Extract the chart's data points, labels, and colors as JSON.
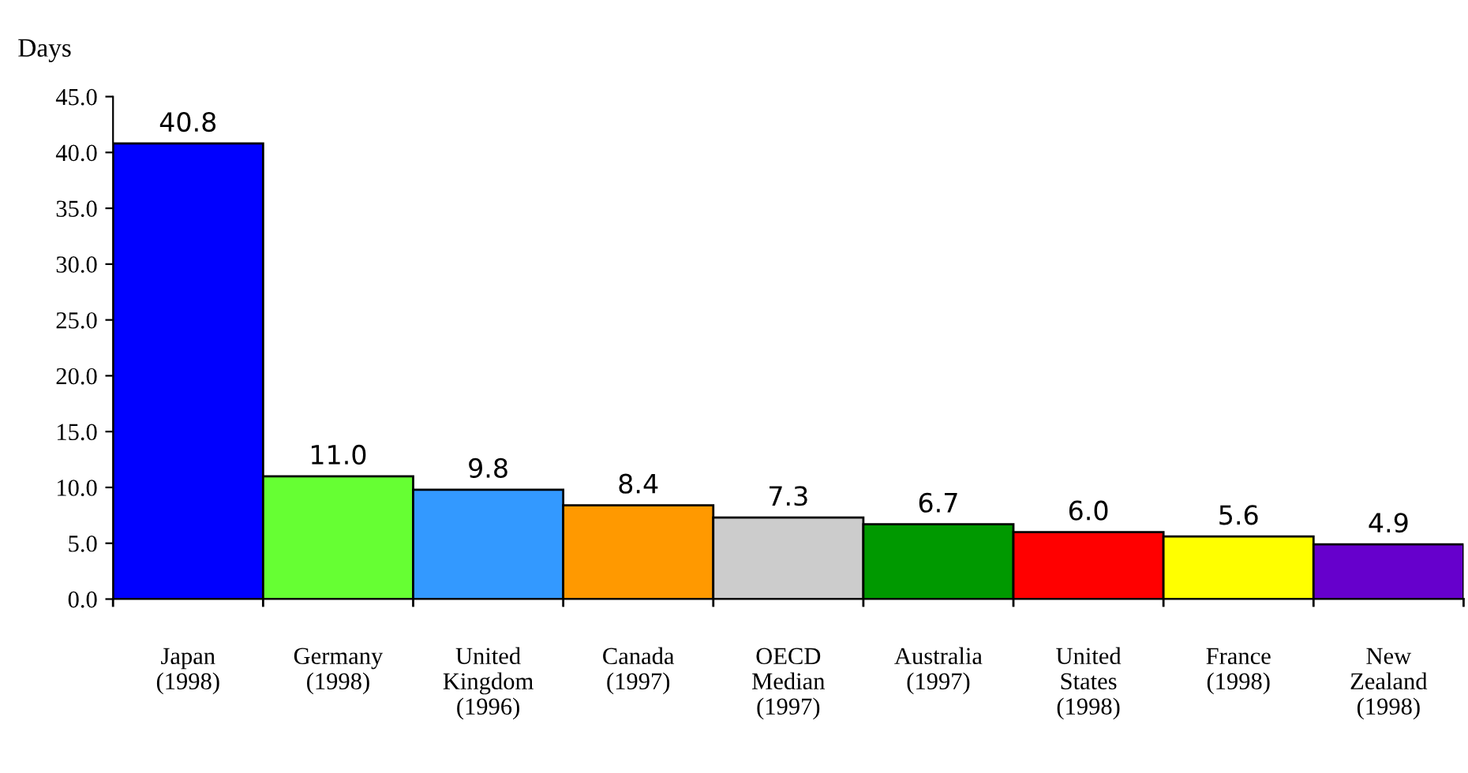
{
  "chart_data": {
    "type": "bar",
    "ylabel": "Days",
    "categories": [
      "Japan\n(1998)",
      "Germany\n(1998)",
      "United\nKingdom\n(1996)",
      "Canada\n(1997)",
      "OECD\nMedian\n(1997)",
      "Australia\n(1997)",
      "United\nStates\n(1998)",
      "France\n(1998)",
      "New\nZealand\n(1998)"
    ],
    "values": [
      40.8,
      11.0,
      9.8,
      8.4,
      7.3,
      6.7,
      6.0,
      5.6,
      4.9
    ],
    "colors": [
      "#0000ff",
      "#66ff33",
      "#3399ff",
      "#ff9900",
      "#cccccc",
      "#009900",
      "#ff0000",
      "#ffff00",
      "#6600cc"
    ],
    "value_labels": [
      "40.8",
      "11.0",
      "9.8",
      "8.4",
      "7.3",
      "6.7",
      "6.0",
      "5.6",
      "4.9"
    ],
    "ylim": [
      0,
      45
    ],
    "yticks": [
      {
        "value": 0,
        "label": "0.0"
      },
      {
        "value": 5,
        "label": "5.0"
      },
      {
        "value": 10,
        "label": "10.0"
      },
      {
        "value": 15,
        "label": "15.0"
      },
      {
        "value": 20,
        "label": "20.0"
      },
      {
        "value": 25,
        "label": "25.0"
      },
      {
        "value": 30,
        "label": "30.0"
      },
      {
        "value": 35,
        "label": "35.0"
      },
      {
        "value": 40,
        "label": "40.0"
      },
      {
        "value": 45,
        "label": "45.0"
      }
    ],
    "grid": false,
    "legend": false
  }
}
